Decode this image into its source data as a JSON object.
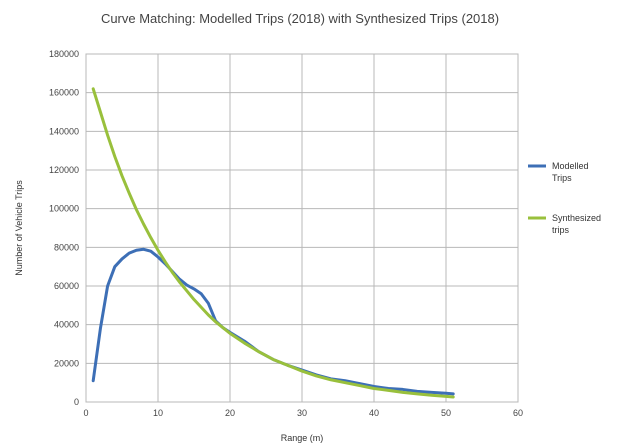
{
  "chart_data": {
    "type": "line",
    "title": "Curve Matching: Modelled Trips (2018) with Synthesized Trips (2018)",
    "xlabel": "Range (m)",
    "ylabel": "Number of Vehicle Trips",
    "xlim": [
      0,
      60
    ],
    "ylim": [
      0,
      180000
    ],
    "xticks": [
      0,
      10,
      20,
      30,
      40,
      50,
      60
    ],
    "yticks": [
      0,
      20000,
      40000,
      60000,
      80000,
      100000,
      120000,
      140000,
      160000,
      180000
    ],
    "grid": true,
    "legend_position": "right",
    "series": [
      {
        "name": "Modelled Trips",
        "name_lines": [
          "Modelled",
          "Trips"
        ],
        "color": "#3d6fb6",
        "x": [
          1,
          2,
          3,
          4,
          5,
          6,
          7,
          8,
          9,
          10,
          11,
          12,
          13,
          14,
          15,
          16,
          17,
          18,
          19,
          20,
          22,
          24,
          26,
          28,
          30,
          32,
          34,
          36,
          38,
          40,
          42,
          44,
          46,
          48,
          50,
          51
        ],
        "y": [
          11000,
          38000,
          60000,
          70000,
          74000,
          77000,
          78500,
          79000,
          78000,
          75000,
          71500,
          67500,
          63500,
          60500,
          58500,
          56000,
          51000,
          42000,
          38500,
          36000,
          31500,
          26000,
          22000,
          19000,
          16500,
          14000,
          12000,
          11000,
          9500,
          8000,
          7000,
          6500,
          5500,
          5000,
          4500,
          4200
        ]
      },
      {
        "name": "Synthesized trips",
        "name_lines": [
          "Synthesized",
          "trips"
        ],
        "color": "#99c03c",
        "x": [
          1,
          2,
          3,
          4,
          5,
          6,
          7,
          8,
          9,
          10,
          11,
          12,
          13,
          14,
          15,
          16,
          17,
          18,
          19,
          20,
          22,
          24,
          26,
          28,
          30,
          32,
          34,
          36,
          38,
          40,
          42,
          44,
          46,
          48,
          50,
          51
        ],
        "y": [
          162000,
          150000,
          138000,
          127000,
          117000,
          108000,
          99500,
          92000,
          85000,
          78500,
          72500,
          67000,
          62000,
          57500,
          53000,
          49000,
          45000,
          41500,
          38500,
          35500,
          30500,
          26000,
          22000,
          19000,
          16000,
          13500,
          11500,
          10000,
          8500,
          7000,
          6000,
          5000,
          4200,
          3500,
          2900,
          2600
        ]
      }
    ]
  }
}
